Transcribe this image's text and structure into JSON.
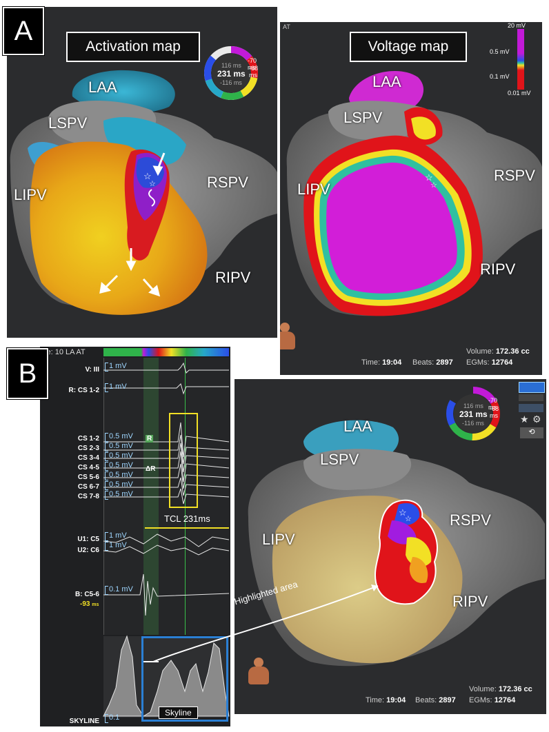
{
  "panel_a": {
    "letter": "A",
    "activation_title": "Activation map",
    "voltage_title": "Voltage map",
    "clock": {
      "top": "116 ms",
      "center": "231 ms",
      "bottom": "-116 ms",
      "right1": "-70 ms",
      "right2": "-68 ms"
    },
    "activation_labels": {
      "laa": "LAA",
      "lspv": "LSPV",
      "lipv": "LIPV",
      "rspv": "RSPV",
      "ripv": "RIPV"
    },
    "voltage_labels": {
      "laa": "LAA",
      "lspv": "LSPV",
      "lipv": "LIPV",
      "rspv": "RSPV",
      "ripv": "RIPV"
    },
    "voltage_scale": {
      "top": "20 mV",
      "mid1": "0.5 mV",
      "mid2": "0.1 mV",
      "bottom": "0.01 mV"
    },
    "header_fragment": "AT",
    "stats": {
      "time_label": "Time:",
      "time": "19:04",
      "beats_label": "Beats:",
      "beats": "2897",
      "volume_label": "Volume:",
      "volume": "172.36 cc",
      "egms_label": "EGMs:",
      "egms": "12764"
    }
  },
  "panel_b": {
    "letter": "B",
    "header": "ve: 10 LA AT",
    "channels": {
      "v": "V: III",
      "r": "R: CS 1-2",
      "cs": [
        "CS 1-2",
        "CS 2-3",
        "CS 3-4",
        "CS 4-5",
        "CS 5-6",
        "CS 6-7",
        "CS 7-8"
      ],
      "u1": "U1: C5",
      "u2": "U2: C6",
      "b": "B: C5-6",
      "b_value": "-93",
      "b_unit": "ms",
      "skyline": "SKYLINE"
    },
    "scales": {
      "v": "1 mV",
      "r": "1 mV",
      "cs": [
        "0.5 mV",
        "0.5 mV",
        "0.5 mV",
        "0.5 mV",
        "0.5 mV",
        "0.5 mV",
        "0.5 mV"
      ],
      "u1": "1 mV",
      "u2": "1 mV",
      "b": "0.1 mV",
      "skyline": "0.1"
    },
    "markers": {
      "r": "R",
      "delta_r": "ΔR"
    },
    "tcl": "TCL 231ms",
    "skyline_label": "Skyline",
    "highlighted": "Highlighted area",
    "map_labels": {
      "laa": "LAA",
      "lspv": "LSPV",
      "lipv": "LIPV",
      "rspv": "RSPV",
      "ripv": "RIPV"
    },
    "clock": {
      "top": "116 ms",
      "center": "231 ms",
      "bottom": "-116 ms",
      "right1": "-70 ms",
      "right2": "-68 ms"
    },
    "stats": {
      "time_label": "Time:",
      "time": "19:04",
      "beats_label": "Beats:",
      "beats": "2897",
      "volume_label": "Volume:",
      "volume": "172.36 cc",
      "egms_label": "EGMs:",
      "egms": "12764"
    }
  },
  "colors": {
    "panel_bg": "#2b2c2e",
    "purple": "#c21ad8",
    "red": "#e0141a",
    "yellow": "#f2e025",
    "blue": "#2a6ee8",
    "cyan": "#26a8c8",
    "tcl": "#f2e025"
  }
}
